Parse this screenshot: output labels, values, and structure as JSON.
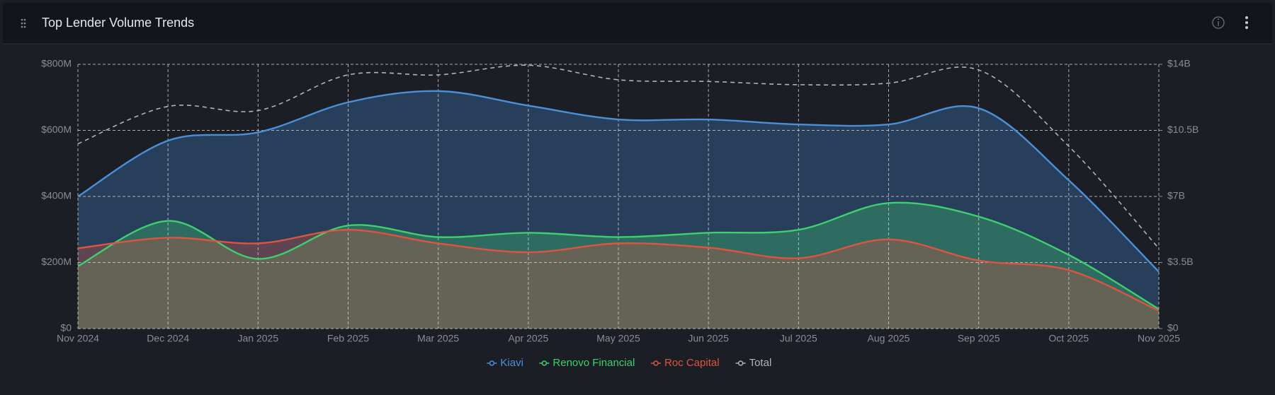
{
  "header": {
    "title": "Top Lender Volume Trends"
  },
  "chart_data": {
    "type": "area",
    "categories": [
      "Nov 2024",
      "Dec 2024",
      "Jan 2025",
      "Feb 2025",
      "Mar 2025",
      "Apr 2025",
      "May 2025",
      "Jun 2025",
      "Jul 2025",
      "Aug 2025",
      "Sep 2025",
      "Oct 2025",
      "Nov 2025"
    ],
    "series": [
      {
        "name": "Kiavi",
        "color": "#4a90d9",
        "values": [
          400000000,
          569000000,
          594000000,
          685000000,
          719000000,
          675000000,
          633000000,
          633000000,
          618000000,
          618000000,
          667000000,
          449000000,
          172000000
        ]
      },
      {
        "name": "Renovo Financial",
        "color": "#3ecf6e",
        "values": [
          189000000,
          326000000,
          211000000,
          312000000,
          277000000,
          290000000,
          277000000,
          290000000,
          299000000,
          380000000,
          339000000,
          223000000,
          59000000
        ]
      },
      {
        "name": "Roc Capital",
        "color": "#e0533f",
        "values": [
          243000000,
          275000000,
          258000000,
          299000000,
          258000000,
          231000000,
          258000000,
          245000000,
          213000000,
          270000000,
          206000000,
          177000000,
          54000000
        ]
      },
      {
        "name": "Total",
        "color": "#b0b3b8",
        "axis": "y2",
        "values": [
          9790000000,
          11770000000,
          11550000000,
          13440000000,
          13440000000,
          13950000000,
          13180000000,
          13090000000,
          12920000000,
          13000000000,
          13700000000,
          9660000000,
          4250000000
        ]
      }
    ],
    "ylim": [
      0,
      800000000
    ],
    "yticks": [
      {
        "value": 0,
        "label": "$0"
      },
      {
        "value": 200000000,
        "label": "$200M"
      },
      {
        "value": 400000000,
        "label": "$400M"
      },
      {
        "value": 600000000,
        "label": "$600M"
      },
      {
        "value": 800000000,
        "label": "$800M"
      }
    ],
    "y2lim": [
      0,
      14000000000
    ],
    "y2ticks": [
      {
        "value": 0,
        "label": "$0"
      },
      {
        "value": 3500000000,
        "label": "$3.5B"
      },
      {
        "value": 7000000000,
        "label": "$7B"
      },
      {
        "value": 10500000000,
        "label": "$10.5B"
      },
      {
        "value": 14000000000,
        "label": "$14B"
      }
    ],
    "grid": true,
    "legend": "bottom"
  }
}
